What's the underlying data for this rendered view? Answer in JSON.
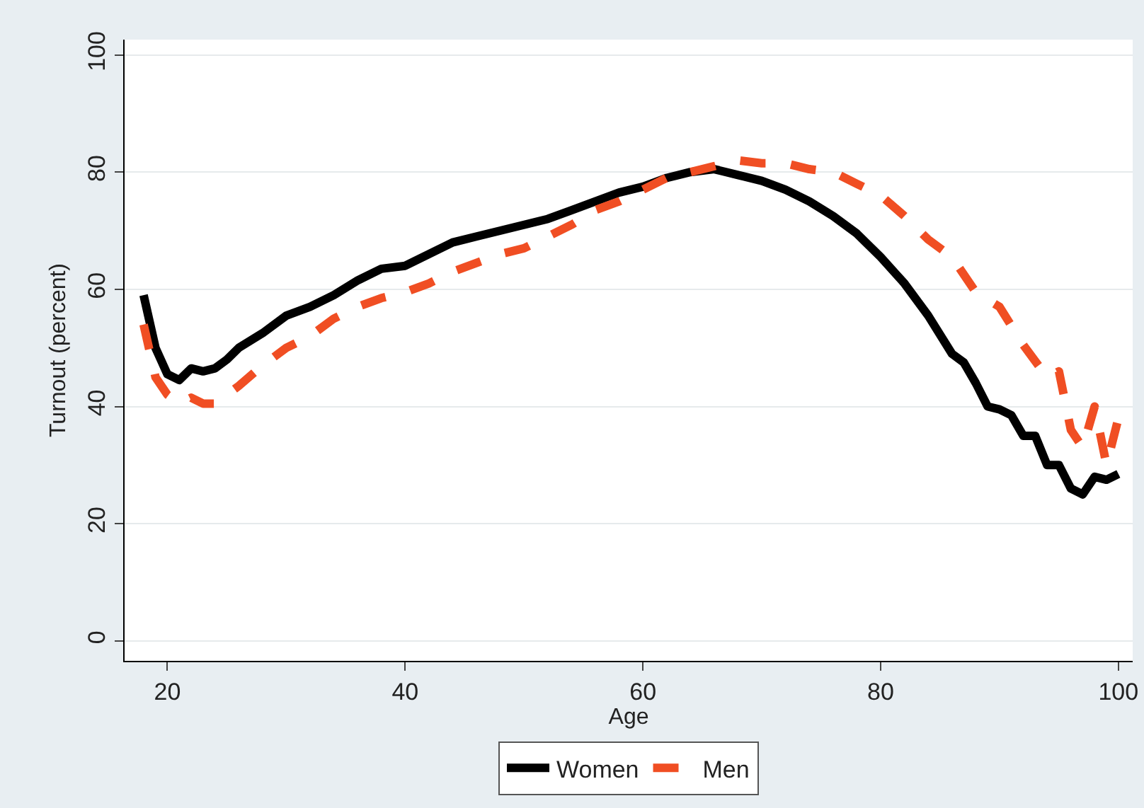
{
  "chart_data": {
    "type": "line",
    "xlabel": "Age",
    "ylabel": "Turnout (percent)",
    "xlim": [
      16.4,
      101.2
    ],
    "xticks": [
      20,
      40,
      60,
      80,
      100
    ],
    "ylim": [
      -3.4,
      102.6
    ],
    "yticks": [
      0,
      20,
      40,
      60,
      80,
      100
    ],
    "grid": "y",
    "legend": "bottom",
    "marker": "none",
    "series": [
      {
        "name": "Women",
        "color": "#000000",
        "line_style": "solid",
        "x": [
          18,
          19,
          20,
          21,
          22,
          23,
          24,
          25,
          26,
          28,
          30,
          32,
          34,
          36,
          38,
          40,
          42,
          44,
          46,
          48,
          50,
          52,
          54,
          56,
          58,
          60,
          62,
          64,
          66,
          68,
          70,
          72,
          74,
          76,
          78,
          80,
          82,
          84,
          86,
          87,
          88,
          89,
          90,
          91,
          92,
          93,
          94,
          95,
          96,
          97,
          98,
          99,
          100
        ],
        "values": [
          59,
          50,
          45.5,
          44.5,
          46.5,
          46,
          46.5,
          48,
          50,
          52.5,
          55.5,
          57,
          59,
          61.5,
          63.5,
          64,
          66,
          68,
          69,
          70,
          71,
          72,
          73.5,
          75,
          76.5,
          77.5,
          79,
          80,
          80.5,
          79.5,
          78.5,
          77,
          75,
          72.5,
          69.5,
          65.5,
          61,
          55.5,
          49,
          47.5,
          44,
          40,
          39.5,
          38.5,
          35,
          35,
          30,
          30,
          26,
          25,
          28,
          27.5,
          28.5
        ]
      },
      {
        "name": "Men",
        "color": "#f04e23",
        "line_style": "dashed",
        "x": [
          18,
          19,
          20,
          21,
          22,
          23,
          24,
          26,
          28,
          30,
          32,
          34,
          36,
          38,
          40,
          42,
          44,
          46,
          48,
          50,
          52,
          54,
          56,
          58,
          60,
          62,
          64,
          66,
          68,
          70,
          72,
          74,
          76,
          78,
          80,
          82,
          84,
          86,
          88,
          90,
          92,
          94,
          95,
          96,
          97,
          98,
          99,
          100
        ],
        "values": [
          54,
          45,
          42,
          40.5,
          41.5,
          40.5,
          40.5,
          43.5,
          47,
          50,
          52,
          55,
          57,
          58.5,
          59.5,
          61,
          63,
          64.5,
          66,
          67,
          69,
          71,
          73.5,
          75,
          77,
          79,
          80,
          81,
          82,
          81.5,
          81.5,
          80.5,
          80,
          78,
          76,
          72.5,
          68.5,
          65.5,
          59.5,
          57,
          50.5,
          45,
          46,
          36,
          33,
          40,
          30,
          38
        ]
      }
    ]
  }
}
